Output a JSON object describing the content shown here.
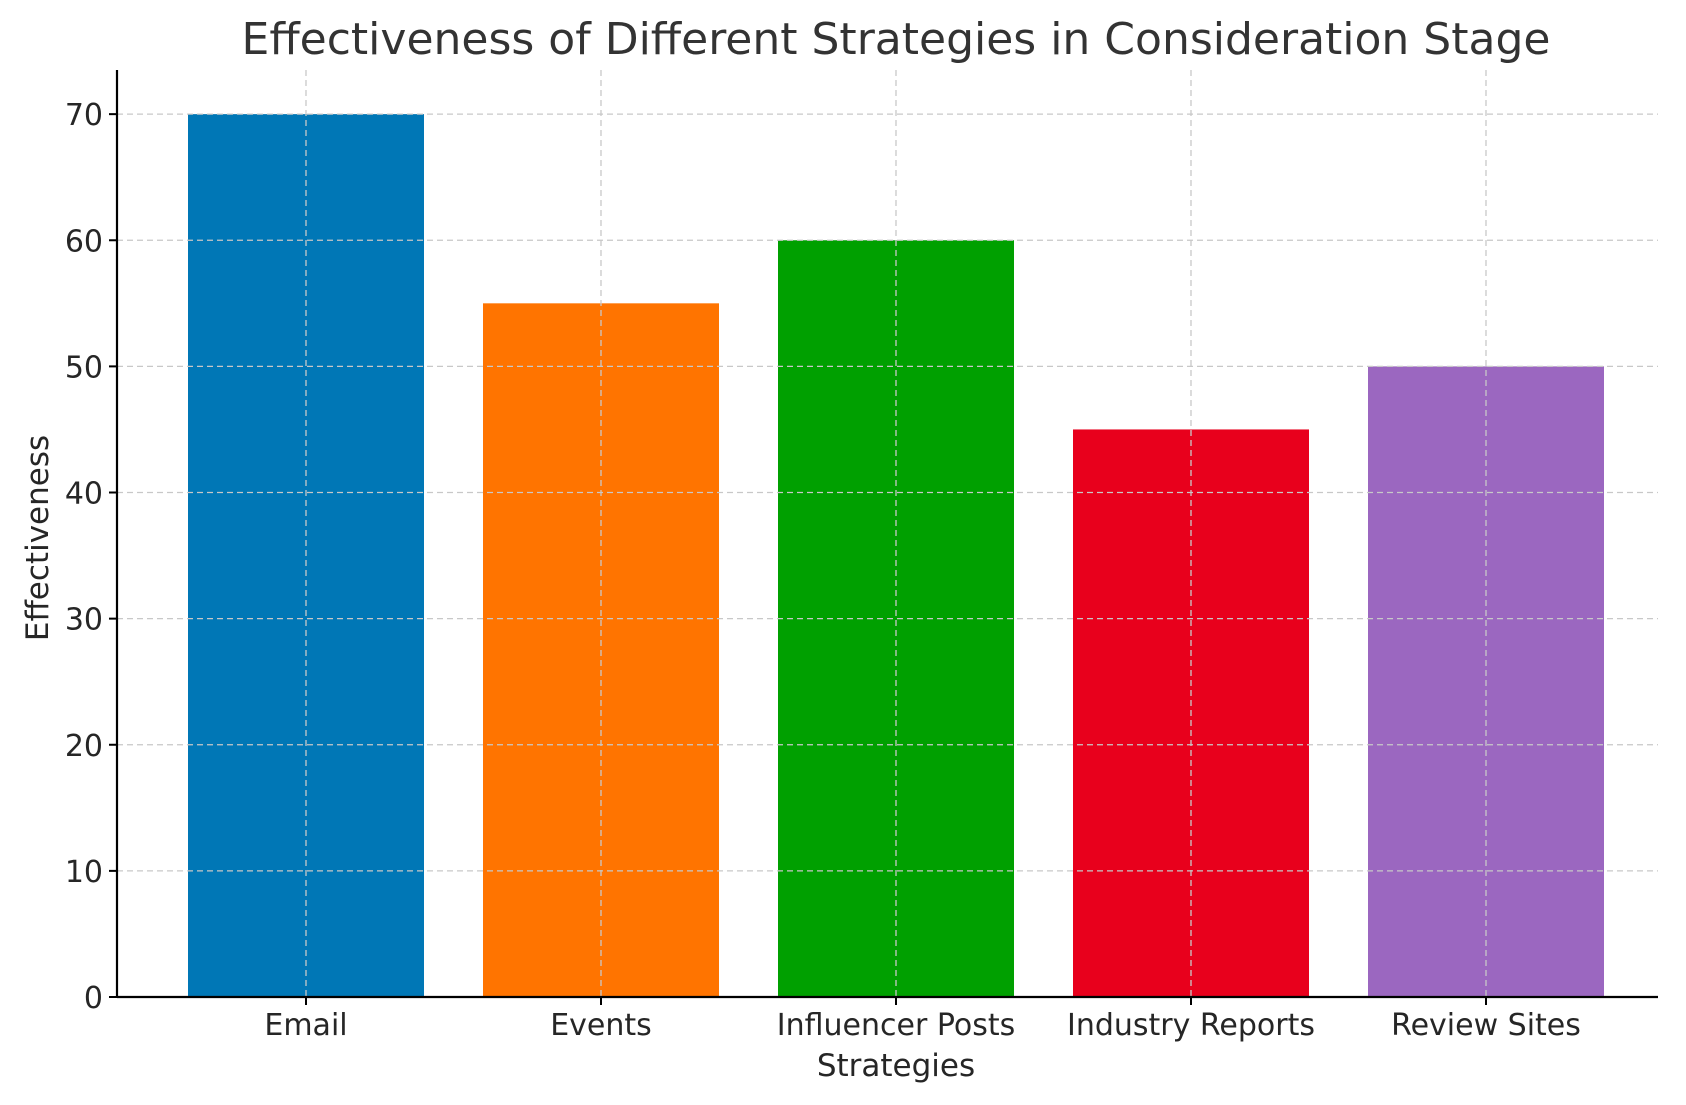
{
  "chart_data": {
    "type": "bar",
    "title": "Effectiveness of Different Strategies in Consideration Stage",
    "xlabel": "Strategies",
    "ylabel": "Effectiveness",
    "categories": [
      "Email",
      "Events",
      "Influencer Posts",
      "Industry Reports",
      "Review Sites"
    ],
    "values": [
      70,
      55,
      60,
      45,
      50
    ],
    "colors": [
      "#0077b6",
      "#ff7400",
      "#00a000",
      "#e8001c",
      "#9b67c0"
    ],
    "ylim": [
      0,
      73.5
    ],
    "yticks": [
      0,
      10,
      20,
      30,
      40,
      50,
      60,
      70
    ],
    "grid": true,
    "legend": "none"
  }
}
